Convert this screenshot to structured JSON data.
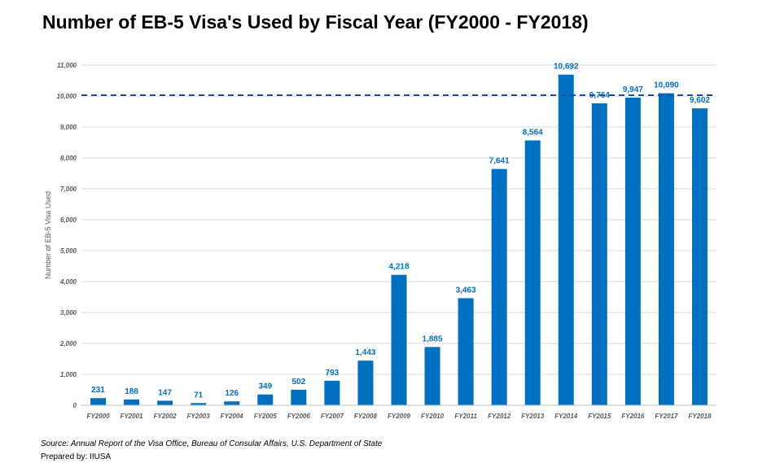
{
  "title": "Number of EB-5 Visa's Used by Fiscal Year (FY2000 - FY2018)",
  "footer": {
    "source": "Source: Annual Report of the Visa Office, Bureau of Consular Affairs, U.S. Department of State",
    "prepared_by": "Prepared by: IIUSA"
  },
  "chart_data": {
    "type": "bar",
    "title": "Number of EB-5 Visa's Used by Fiscal Year (FY2000 - FY2018)",
    "xlabel": "",
    "ylabel": "Number of EB-5 Visa Used",
    "categories": [
      "FY2000",
      "FY2001",
      "FY2002",
      "FY2003",
      "FY2004",
      "FY2005",
      "FY2006",
      "FY2007",
      "FY2008",
      "FY2009",
      "FY2010",
      "FY2011",
      "FY2012",
      "FY2013",
      "FY2014",
      "FY2015",
      "FY2016",
      "FY2017",
      "FY2018"
    ],
    "values": [
      231,
      188,
      147,
      71,
      126,
      349,
      502,
      793,
      1443,
      4218,
      1885,
      3463,
      7641,
      8564,
      10692,
      9764,
      9947,
      10090,
      9602
    ],
    "data_labels": [
      "231",
      "188",
      "147",
      "71",
      "126",
      "349",
      "502",
      "793",
      "1,443",
      "4,218",
      "1,885",
      "3,463",
      "7,641",
      "8,564",
      "10,692",
      "9,764",
      "9,947",
      "10,090",
      "9,602"
    ],
    "ylim": [
      0,
      11000
    ],
    "yticks": [
      0,
      1000,
      2000,
      3000,
      4000,
      5000,
      6000,
      7000,
      8000,
      9000,
      10000,
      11000
    ],
    "ytick_labels": [
      "0",
      "1,000",
      "2,000",
      "3,000",
      "4,000",
      "5,000",
      "6,000",
      "7,000",
      "8,000",
      "9,000",
      "10,000",
      "11,000"
    ],
    "reference_line": 10000,
    "grid": true,
    "legend": "none",
    "colors": {
      "bar": "#0070C0",
      "label": "#0070C0",
      "reference_line": "#1F4E9A",
      "grid": "#D9D9D9",
      "axis_text": "#595959"
    }
  }
}
